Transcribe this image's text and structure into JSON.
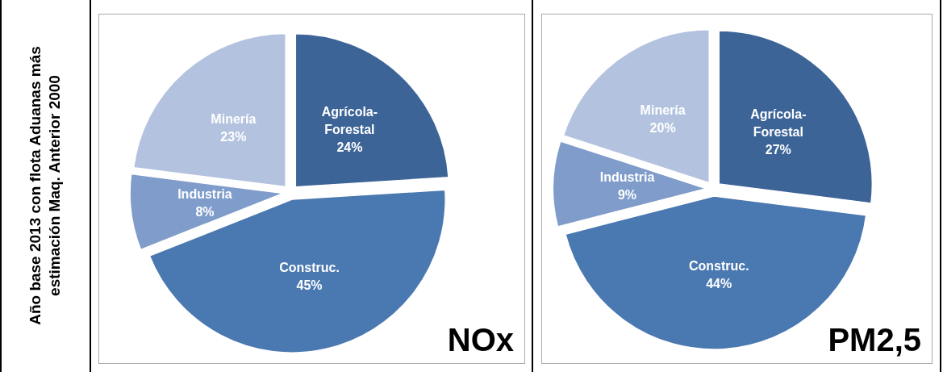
{
  "chart_data": [
    {
      "type": "pie",
      "title": "NOx",
      "ylabel": "Año base 2013 con flota Aduanas más estimación Maq. Anterior 2000",
      "categories": [
        "Agrícola-Forestal",
        "Construc.",
        "Industria",
        "Minería"
      ],
      "values": [
        24,
        45,
        8,
        23
      ],
      "value_labels": [
        "24%",
        "45%",
        "8%",
        "23%"
      ],
      "colors": [
        "#3d6497",
        "#4a78b0",
        "#7f9cca",
        "#b3c3df"
      ],
      "legend": false
    },
    {
      "type": "pie",
      "title": "PM2,5",
      "categories": [
        "Agrícola-Forestal",
        "Construc.",
        "Industria",
        "Minería"
      ],
      "values": [
        27,
        44,
        9,
        20
      ],
      "value_labels": [
        "27%",
        "44%",
        "9%",
        "20%"
      ],
      "colors": [
        "#3d6497",
        "#4a78b0",
        "#7f9cca",
        "#b3c3df"
      ],
      "legend": false
    }
  ]
}
